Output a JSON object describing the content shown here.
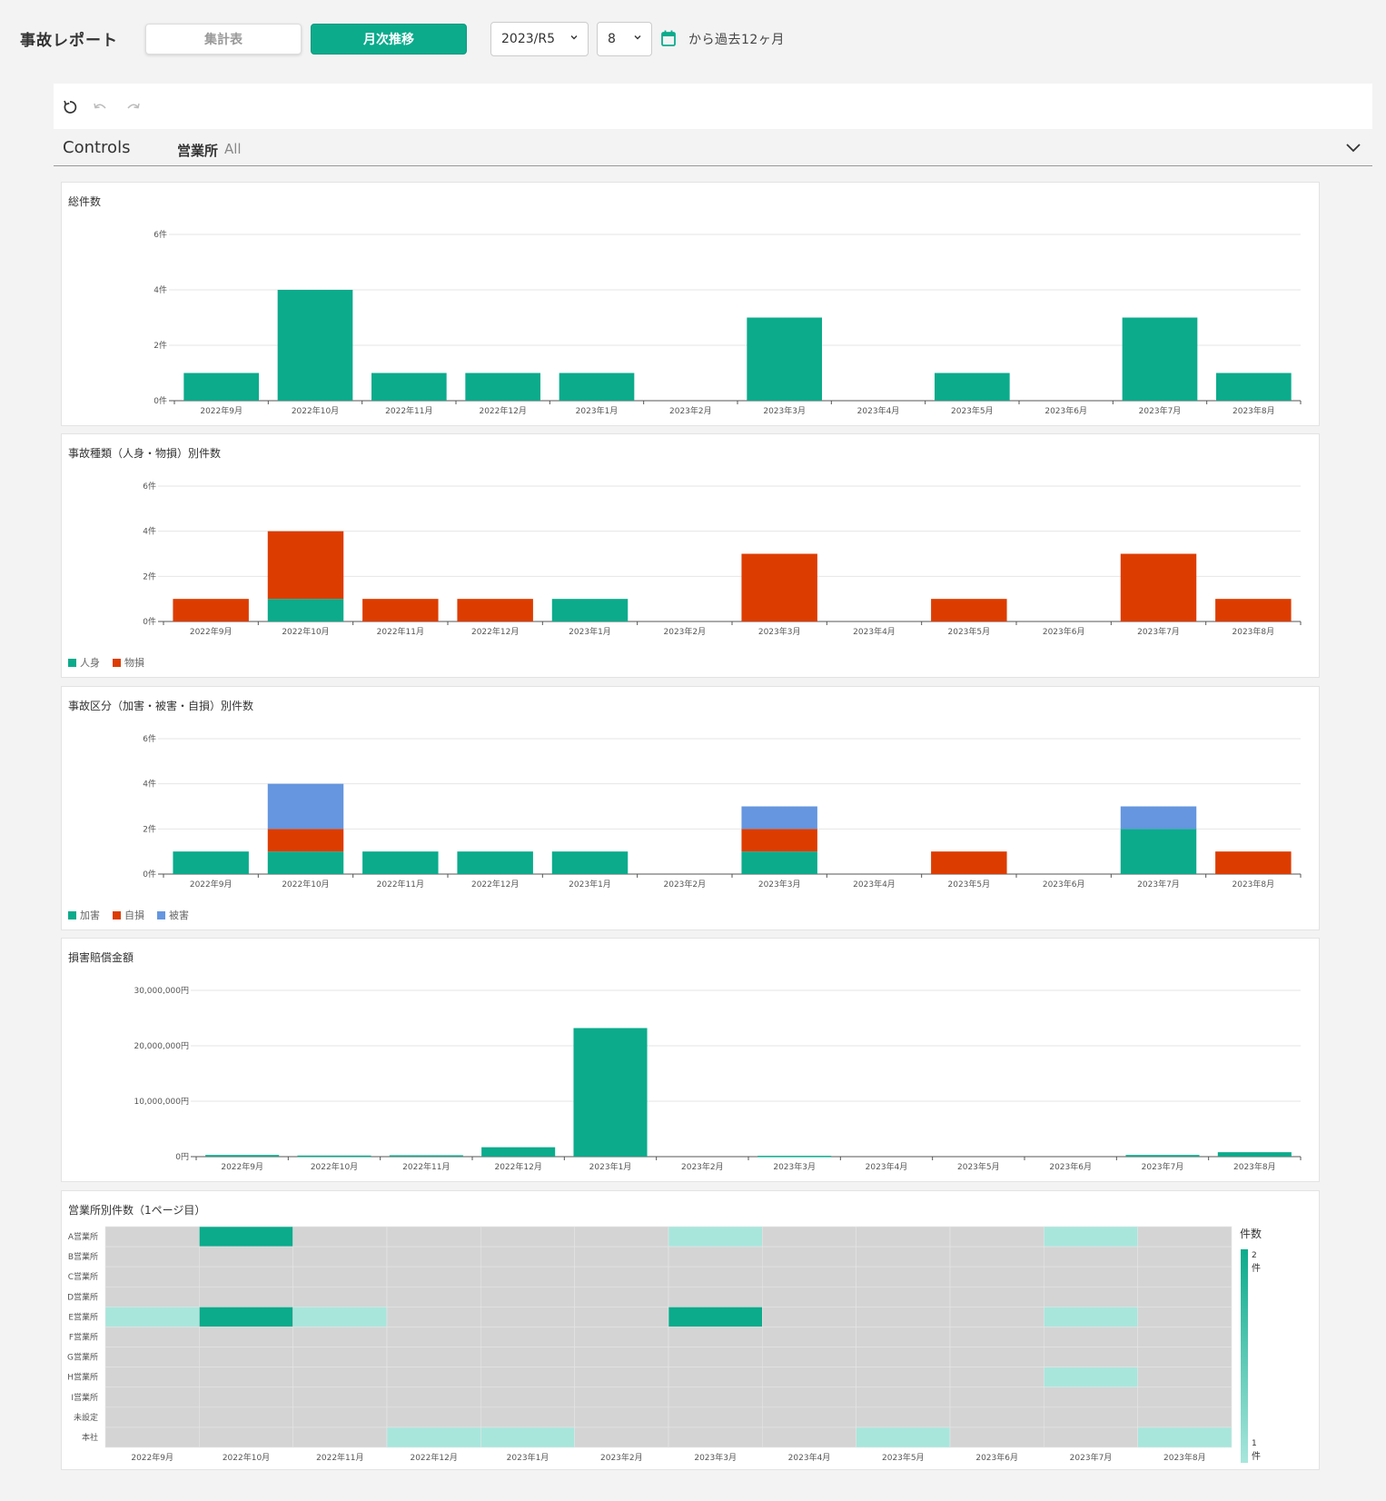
{
  "header": {
    "app_title": "事故レポート",
    "tab_summary": "集計表",
    "tab_monthly": "月次推移",
    "year_select": "2023/R5",
    "month_select": "8",
    "range_text": "から過去12ヶ月"
  },
  "controls": {
    "label": "Controls",
    "filter_label": "営業所",
    "filter_value": "All"
  },
  "colors": {
    "teal": "#0bab8c",
    "red": "#dd3c00",
    "blue": "#6596df",
    "light_teal": "#a8e6dc",
    "heat_empty": "#d4d4d4"
  },
  "months": [
    "2022年9月",
    "2022年10月",
    "2022年11月",
    "2022年12月",
    "2023年1月",
    "2023年2月",
    "2023年3月",
    "2023年4月",
    "2023年5月",
    "2023年6月",
    "2023年7月",
    "2023年8月"
  ],
  "chart_data": [
    {
      "type": "bar",
      "title": "総件数",
      "categories": [
        "2022年9月",
        "2022年10月",
        "2022年11月",
        "2022年12月",
        "2023年1月",
        "2023年2月",
        "2023年3月",
        "2023年4月",
        "2023年5月",
        "2023年6月",
        "2023年7月",
        "2023年8月"
      ],
      "series": [
        {
          "values": [
            1,
            4,
            1,
            1,
            1,
            0,
            3,
            0,
            1,
            0,
            3,
            1
          ]
        }
      ],
      "yticks": [
        "0件",
        "2件",
        "4件",
        "6件"
      ],
      "ylim": [
        0,
        6
      ]
    },
    {
      "type": "bar",
      "stacked": true,
      "title": "事故種類（人身・物損）別件数",
      "categories": [
        "2022年9月",
        "2022年10月",
        "2022年11月",
        "2022年12月",
        "2023年1月",
        "2023年2月",
        "2023年3月",
        "2023年4月",
        "2023年5月",
        "2023年6月",
        "2023年7月",
        "2023年8月"
      ],
      "series": [
        {
          "name": "人身",
          "values": [
            0,
            1,
            0,
            0,
            1,
            0,
            0,
            0,
            0,
            0,
            0,
            0
          ]
        },
        {
          "name": "物損",
          "values": [
            1,
            3,
            1,
            1,
            0,
            0,
            3,
            0,
            1,
            0,
            3,
            1
          ]
        }
      ],
      "yticks": [
        "0件",
        "2件",
        "4件",
        "6件"
      ],
      "ylim": [
        0,
        6
      ],
      "legend": "bottom-left"
    },
    {
      "type": "bar",
      "stacked": true,
      "title": "事故区分（加害・被害・自損）別件数",
      "categories": [
        "2022年9月",
        "2022年10月",
        "2022年11月",
        "2022年12月",
        "2023年1月",
        "2023年2月",
        "2023年3月",
        "2023年4月",
        "2023年5月",
        "2023年6月",
        "2023年7月",
        "2023年8月"
      ],
      "series": [
        {
          "name": "加害",
          "values": [
            1,
            1,
            1,
            1,
            1,
            0,
            1,
            0,
            0,
            0,
            2,
            0
          ]
        },
        {
          "name": "自損",
          "values": [
            0,
            1,
            0,
            0,
            0,
            0,
            1,
            0,
            1,
            0,
            0,
            1
          ]
        },
        {
          "name": "被害",
          "values": [
            0,
            2,
            0,
            0,
            0,
            0,
            1,
            0,
            0,
            0,
            1,
            0
          ]
        }
      ],
      "yticks": [
        "0件",
        "2件",
        "4件",
        "6件"
      ],
      "ylim": [
        0,
        6
      ],
      "legend": "bottom-left"
    },
    {
      "type": "bar",
      "title": "損害賠償金額",
      "categories": [
        "2022年9月",
        "2022年10月",
        "2022年11月",
        "2022年12月",
        "2023年1月",
        "2023年2月",
        "2023年3月",
        "2023年4月",
        "2023年5月",
        "2023年6月",
        "2023年7月",
        "2023年8月"
      ],
      "series": [
        {
          "values": [
            300000,
            200000,
            250000,
            1700000,
            23200000,
            0,
            150000,
            0,
            0,
            0,
            300000,
            800000
          ]
        }
      ],
      "yticks": [
        "0円",
        "10,000,000円",
        "20,000,000円",
        "30,000,000円"
      ],
      "ylim": [
        0,
        30000000
      ]
    },
    {
      "type": "heatmap",
      "title": "営業所別件数（1ページ目）",
      "categories": [
        "2022年9月",
        "2022年10月",
        "2022年11月",
        "2022年12月",
        "2023年1月",
        "2023年2月",
        "2023年3月",
        "2023年4月",
        "2023年5月",
        "2023年6月",
        "2023年7月",
        "2023年8月"
      ],
      "rows": [
        "A営業所",
        "B営業所",
        "C営業所",
        "D営業所",
        "E営業所",
        "F営業所",
        "G営業所",
        "H営業所",
        "I営業所",
        "未設定",
        "本社"
      ],
      "values": [
        [
          0,
          2,
          0,
          0,
          0,
          0,
          1,
          0,
          0,
          0,
          1,
          0
        ],
        [
          0,
          0,
          0,
          0,
          0,
          0,
          0,
          0,
          0,
          0,
          0,
          0
        ],
        [
          0,
          0,
          0,
          0,
          0,
          0,
          0,
          0,
          0,
          0,
          0,
          0
        ],
        [
          0,
          0,
          0,
          0,
          0,
          0,
          0,
          0,
          0,
          0,
          0,
          0
        ],
        [
          1,
          2,
          1,
          0,
          0,
          0,
          2,
          0,
          0,
          0,
          1,
          0
        ],
        [
          0,
          0,
          0,
          0,
          0,
          0,
          0,
          0,
          0,
          0,
          0,
          0
        ],
        [
          0,
          0,
          0,
          0,
          0,
          0,
          0,
          0,
          0,
          0,
          0,
          0
        ],
        [
          0,
          0,
          0,
          0,
          0,
          0,
          0,
          0,
          0,
          0,
          1,
          0
        ],
        [
          0,
          0,
          0,
          0,
          0,
          0,
          0,
          0,
          0,
          0,
          0,
          0
        ],
        [
          0,
          0,
          0,
          0,
          0,
          0,
          0,
          0,
          0,
          0,
          0,
          0
        ],
        [
          0,
          0,
          0,
          1,
          1,
          0,
          0,
          0,
          1,
          0,
          0,
          1
        ]
      ],
      "legend_title": "件数",
      "legend_max": "2",
      "legend_min": "1",
      "legend_unit": "件"
    }
  ]
}
